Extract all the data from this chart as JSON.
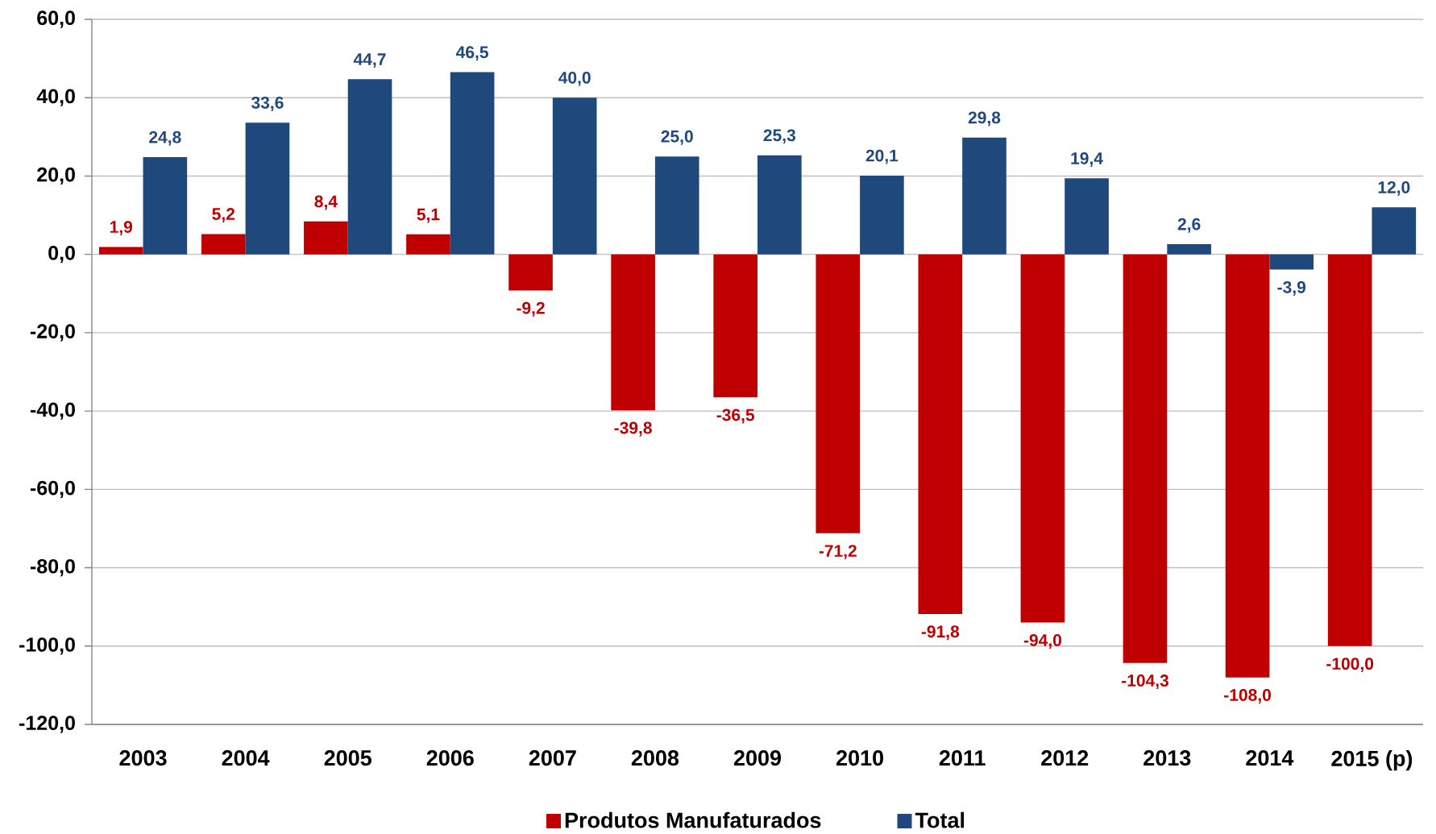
{
  "chart_data": {
    "type": "bar",
    "categories": [
      "2003",
      "2004",
      "2005",
      "2006",
      "2007",
      "2008",
      "2009",
      "2010",
      "2011",
      "2012",
      "2013",
      "2014",
      "2015 (p)"
    ],
    "series": [
      {
        "name": "Produtos Manufaturados",
        "color": "#c00000",
        "values": [
          1.9,
          5.2,
          8.4,
          5.1,
          -9.2,
          -39.8,
          -36.5,
          -71.2,
          -91.8,
          -94.0,
          -104.3,
          -108.0,
          -100.0
        ],
        "value_labels": [
          "1,9",
          "5,2",
          "8,4",
          "5,1",
          "-9,2",
          "-39,8",
          "-36,5",
          "-71,2",
          "-91,8",
          "-94,0",
          "-104,3",
          "-108,0",
          "-100,0"
        ]
      },
      {
        "name": "Total",
        "color": "#1f497d",
        "values": [
          24.8,
          33.6,
          44.7,
          46.5,
          40.0,
          25.0,
          25.3,
          20.1,
          29.8,
          19.4,
          2.6,
          -3.9,
          12.0
        ],
        "value_labels": [
          "24,8",
          "33,6",
          "44,7",
          "46,5",
          "40,0",
          "25,0",
          "25,3",
          "20,1",
          "29,8",
          "19,4",
          "2,6",
          "-3,9",
          "12,0"
        ]
      }
    ],
    "ylim": [
      -120,
      60
    ],
    "yticks": [
      {
        "value": -120,
        "label": "-120,0"
      },
      {
        "value": -100,
        "label": "-100,0"
      },
      {
        "value": -80,
        "label": "-80,0"
      },
      {
        "value": -60,
        "label": "-60,0"
      },
      {
        "value": -40,
        "label": "-40,0"
      },
      {
        "value": -20,
        "label": "-20,0"
      },
      {
        "value": 0,
        "label": "0,0"
      },
      {
        "value": 20,
        "label": "20,0"
      },
      {
        "value": 40,
        "label": "40,0"
      },
      {
        "value": 60,
        "label": "60,0"
      }
    ],
    "grid": "y",
    "legend": "bottom"
  }
}
